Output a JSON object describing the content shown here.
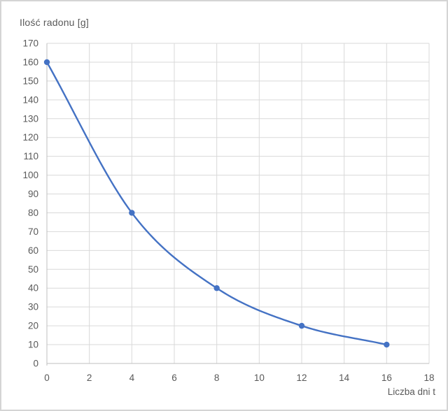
{
  "chart": {
    "title": "Ilość radonu [g]",
    "x_axis_title": "Liczba dni t"
  },
  "chart_data": {
    "type": "line",
    "title": "Ilość radonu [g]",
    "xlabel": "Liczba dni t",
    "ylabel": "Ilość radonu [g]",
    "x": [
      0,
      4,
      8,
      12,
      16
    ],
    "y": [
      160,
      80,
      40,
      20,
      10
    ],
    "xlim": [
      0,
      18
    ],
    "ylim": [
      0,
      170
    ],
    "xticks": [
      0,
      2,
      4,
      6,
      8,
      10,
      12,
      14,
      16,
      18
    ],
    "yticks": [
      0,
      10,
      20,
      30,
      40,
      50,
      60,
      70,
      80,
      90,
      100,
      110,
      120,
      130,
      140,
      150,
      160,
      170
    ],
    "grid": true,
    "smooth": true,
    "marker": "circle",
    "legend_position": "none",
    "line_color": "#4472C4",
    "marker_color": "#4472C4",
    "grid_color": "#D9D9D9",
    "axis_color": "#BFBFBF",
    "label_color": "#595959"
  }
}
